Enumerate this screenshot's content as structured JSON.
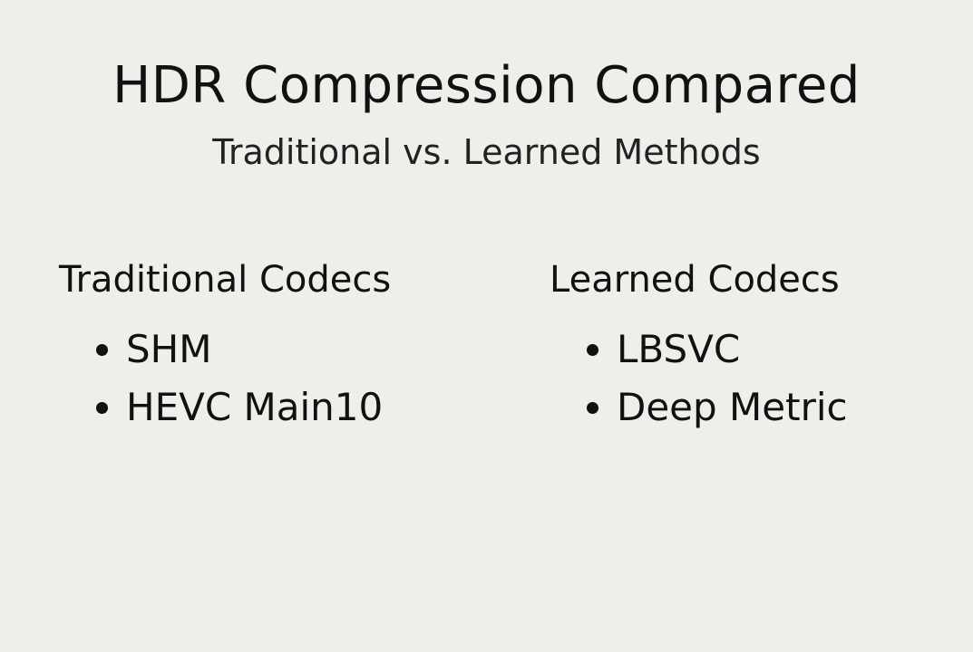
{
  "title": "HDR Compression Compared",
  "subtitle": "Traditional vs. Learned Methods",
  "columns": [
    {
      "heading": "Traditional Codecs",
      "items": [
        "SHM",
        "HEVC Main10"
      ]
    },
    {
      "heading": "Learned Codecs",
      "items": [
        "LBSVC",
        "Deep Metric"
      ]
    }
  ]
}
